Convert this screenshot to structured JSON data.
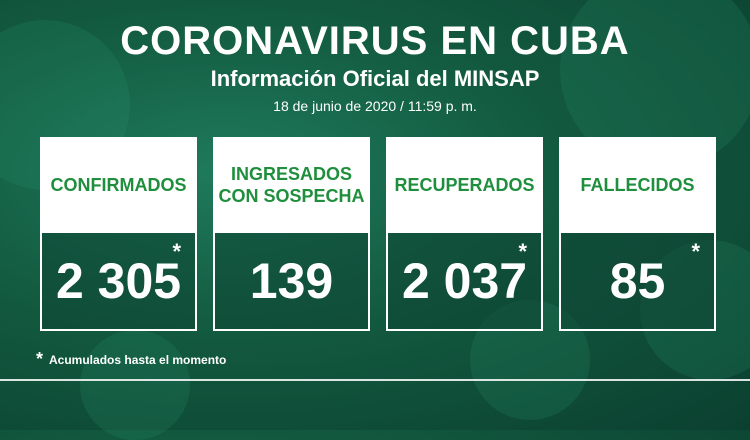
{
  "header": {
    "title": "CORONAVIRUS EN CUBA",
    "subtitle": "Información Oficial del MINSAP",
    "date": "18 de junio de 2020 / 11:59 p. m."
  },
  "cards": [
    {
      "label": "CONFIRMADOS",
      "value": "2 305",
      "star": "*"
    },
    {
      "label": "INGRESADOS CON SOSPECHA",
      "value": "139",
      "star": ""
    },
    {
      "label": "RECUPERADOS",
      "value": "2 037",
      "star": "*"
    },
    {
      "label": "FALLECIDOS",
      "value": "85",
      "star": "*"
    }
  ],
  "footnote": {
    "star": "*",
    "text": "Acumulados hasta el momento"
  },
  "colors": {
    "label_green": "#1f8f3d",
    "background": "#12593f"
  }
}
